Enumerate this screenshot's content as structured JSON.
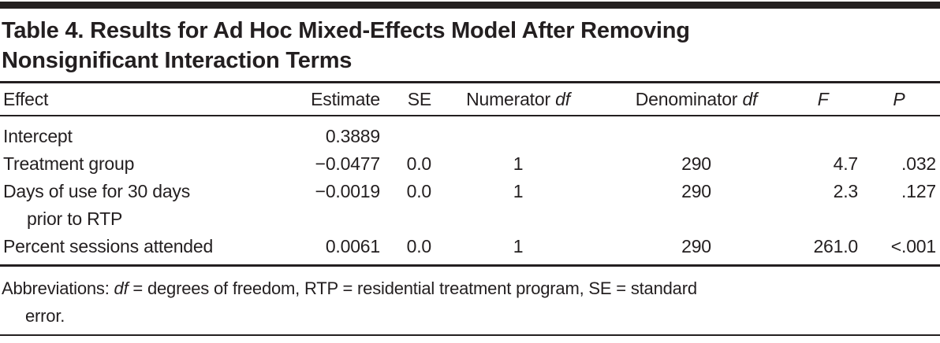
{
  "table": {
    "title_lines": [
      "Table 4. Results for Ad Hoc Mixed-Effects Model After Removing",
      "Nonsignificant Interaction Terms"
    ],
    "columns": [
      {
        "label": "Effect",
        "italic": ""
      },
      {
        "label": "Estimate",
        "italic": ""
      },
      {
        "label": "SE",
        "italic": ""
      },
      {
        "label": "Numerator ",
        "italic": "df"
      },
      {
        "label": "Denominator ",
        "italic": "df"
      },
      {
        "label": "",
        "italic": "F"
      },
      {
        "label": "",
        "italic": "P"
      }
    ],
    "rows": [
      {
        "effect": "Intercept",
        "effect2": "",
        "estimate": "0.3889",
        "se": "",
        "num_df": "",
        "den_df": "",
        "f": "",
        "p": ""
      },
      {
        "effect": "Treatment group",
        "effect2": "",
        "estimate": "−0.0477",
        "se": "0.0",
        "num_df": "1",
        "den_df": "290",
        "f": "4.7",
        "p": ".032"
      },
      {
        "effect": "Days of use for 30 days",
        "effect2": "prior to RTP",
        "estimate": "−0.0019",
        "se": "0.0",
        "num_df": "1",
        "den_df": "290",
        "f": "2.3",
        "p": ".127"
      },
      {
        "effect": "Percent sessions attended",
        "effect2": "",
        "estimate": "0.0061",
        "se": "0.0",
        "num_df": "1",
        "den_df": "290",
        "f": "261.0",
        "p": "<.001"
      }
    ],
    "footnote": {
      "line1_prefix": "Abbreviations: ",
      "line1_italic": "df",
      "line1_rest": " = degrees of freedom, RTP = residential treatment program, SE = standard",
      "line2": "error."
    }
  },
  "colors": {
    "background": "#ffffff",
    "text": "#231f20",
    "rule": "#231f20"
  }
}
